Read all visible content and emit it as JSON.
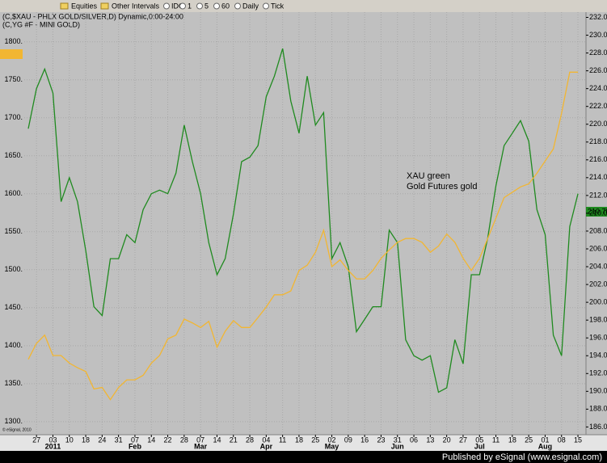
{
  "toolbar": {
    "items": [
      "Equities",
      "Other Intervals",
      "IDC",
      "1",
      "5",
      "60",
      "Daily",
      "Tick"
    ]
  },
  "chart_data": {
    "type": "line",
    "title": "(C,$XAU - PHLX GOLD/SILVER,D) Dynamic,0:00-24:00",
    "subtitle": "(C,YG #F - MINI GOLD)",
    "annotations": [
      "XAU green",
      "Gold Futures gold"
    ],
    "price_label": "210.78",
    "copyright": "© eSignal, 2010",
    "categories": [
      null,
      "27",
      null,
      "03",
      null,
      "10",
      null,
      "18",
      null,
      "24",
      null,
      "31",
      null,
      "07",
      null,
      "14",
      null,
      "22",
      null,
      "28",
      null,
      "07",
      null,
      "14",
      null,
      "21",
      null,
      "28",
      null,
      "04",
      null,
      "11",
      null,
      "18",
      null,
      "25",
      null,
      "02",
      null,
      "09",
      null,
      "16",
      null,
      "23",
      null,
      "31",
      null,
      "06",
      null,
      "13",
      null,
      "20",
      null,
      "27",
      null,
      "05",
      null,
      "11",
      null,
      "18",
      null,
      "25",
      null,
      "01",
      null,
      "08",
      null,
      "15",
      null
    ],
    "x_groups": [
      null,
      null,
      null,
      "2011",
      null,
      null,
      null,
      null,
      null,
      null,
      null,
      null,
      null,
      "Feb",
      null,
      null,
      null,
      null,
      null,
      null,
      null,
      "Mar",
      null,
      null,
      null,
      null,
      null,
      null,
      null,
      "Apr",
      null,
      null,
      null,
      null,
      null,
      null,
      null,
      "May",
      null,
      null,
      null,
      null,
      null,
      null,
      null,
      "Jun",
      null,
      null,
      null,
      null,
      null,
      null,
      null,
      null,
      null,
      "Jul",
      null,
      null,
      null,
      null,
      null,
      null,
      null,
      "Aug",
      null,
      null,
      null,
      null,
      null
    ],
    "series": [
      {
        "color": "#1f8a1f",
        "axis": "y2",
        "values": [
          219.5,
          224.0,
          226.2,
          223.5,
          211.3,
          214.0,
          211.3,
          205.8,
          199.5,
          198.5,
          204.9,
          204.9,
          207.6,
          206.7,
          210.4,
          212.2,
          212.6,
          212.2,
          214.5,
          219.9,
          215.8,
          212.2,
          206.7,
          203.1,
          204.9,
          209.9,
          215.8,
          216.3,
          217.6,
          223.1,
          225.4,
          228.5,
          222.6,
          219.0,
          225.4,
          219.9,
          221.3,
          204.9,
          206.7,
          204.0,
          196.7,
          198.1,
          199.5,
          199.5,
          208.1,
          206.7,
          195.8,
          194.0,
          193.5,
          194.0,
          189.9,
          190.4,
          195.8,
          193.1,
          203.1,
          203.1,
          207.2,
          213.1,
          217.6,
          219.0,
          220.4,
          218.1,
          210.4,
          207.6,
          196.3,
          194.0,
          208.5,
          212.2,
          null
        ]
      },
      {
        "color": "#f2b632",
        "values": [
          1382,
          1403,
          1414,
          1387,
          1387,
          1377,
          1371,
          1366,
          1343,
          1345,
          1329,
          1345,
          1355,
          1355,
          1361,
          1377,
          1387,
          1409,
          1414,
          1435,
          1430,
          1424,
          1432,
          1398,
          1419,
          1433,
          1424,
          1424,
          1437,
          1451,
          1467,
          1467,
          1472,
          1499,
          1506,
          1523,
          1552,
          1504,
          1513,
          1499,
          1488,
          1488,
          1499,
          1515,
          1526,
          1536,
          1541,
          1541,
          1536,
          1523,
          1531,
          1547,
          1536,
          1515,
          1499,
          1515,
          1541,
          1568,
          1595,
          1602,
          1609,
          1613,
          1627,
          1643,
          1659,
          1706,
          1760,
          1760,
          null
        ]
      }
    ],
    "ylim": [
      1286,
      1838
    ],
    "yticks": [
      {
        "value": 1300,
        "label": "1300."
      },
      {
        "value": 1350,
        "label": "1350."
      },
      {
        "value": 1400,
        "label": "1400."
      },
      {
        "value": 1450,
        "label": "1450."
      },
      {
        "value": 1500,
        "label": "1500."
      },
      {
        "value": 1550,
        "label": "1550."
      },
      {
        "value": 1600,
        "label": "1600."
      },
      {
        "value": 1650,
        "label": "1650."
      },
      {
        "value": 1700,
        "label": "1700."
      },
      {
        "value": 1750,
        "label": "1750."
      },
      {
        "value": 1800,
        "label": "1800."
      }
    ],
    "y2lim": [
      185.4,
      232.5
    ],
    "y2ticks": [
      {
        "value": 186,
        "label": "186.00"
      },
      {
        "value": 188,
        "label": "188.00"
      },
      {
        "value": 190,
        "label": "190.00"
      },
      {
        "value": 192,
        "label": "192.00"
      },
      {
        "value": 194,
        "label": "194.00"
      },
      {
        "value": 196,
        "label": "196.00"
      },
      {
        "value": 198,
        "label": "198.00"
      },
      {
        "value": 200,
        "label": "200.00"
      },
      {
        "value": 202,
        "label": "202.00"
      },
      {
        "value": 204,
        "label": "204.00"
      },
      {
        "value": 206,
        "label": "206.00"
      },
      {
        "value": 208,
        "label": "208.00"
      },
      {
        "value": 210,
        "label": "210.00"
      },
      {
        "value": 212,
        "label": "212.00"
      },
      {
        "value": 214,
        "label": "214.00"
      },
      {
        "value": 216,
        "label": "216.00"
      },
      {
        "value": 218,
        "label": "218.00"
      },
      {
        "value": 220,
        "label": "220.00"
      },
      {
        "value": 222,
        "label": "222.00"
      },
      {
        "value": 224,
        "label": "224.00"
      },
      {
        "value": 226,
        "label": "226.00"
      },
      {
        "value": 228,
        "label": "228.00"
      },
      {
        "value": 230,
        "label": "230.00"
      },
      {
        "value": 232,
        "label": "232.00"
      }
    ],
    "grid": true
  },
  "footer": "Published by eSignal (www.esignal.com)"
}
